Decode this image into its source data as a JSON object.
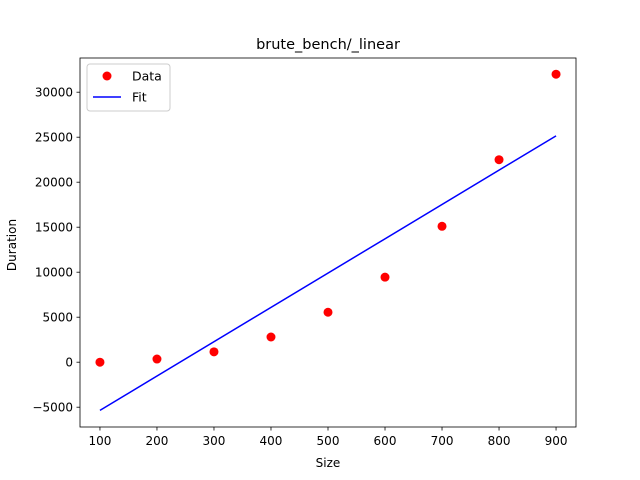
{
  "chart_data": {
    "type": "scatter",
    "title": "brute_bench/_linear",
    "xlabel": "Size",
    "ylabel": "Duration",
    "xlim": [
      65,
      935
    ],
    "ylim": [
      -7200,
      33800
    ],
    "xticks": [
      100,
      200,
      300,
      400,
      500,
      600,
      700,
      800,
      900
    ],
    "yticks": [
      -5000,
      0,
      5000,
      10000,
      15000,
      20000,
      25000,
      30000
    ],
    "grid": false,
    "legend_position": "top-left",
    "series": [
      {
        "name": "Data",
        "kind": "scatter",
        "color": "#ff0000",
        "x": [
          100,
          200,
          300,
          400,
          500,
          600,
          700,
          800,
          900
        ],
        "y": [
          0,
          350,
          1150,
          2800,
          5550,
          9450,
          15100,
          22500,
          32000
        ]
      },
      {
        "name": "Fit",
        "kind": "line",
        "color": "#0000ff",
        "x": [
          100,
          900
        ],
        "y": [
          -5350,
          25150
        ]
      }
    ]
  }
}
